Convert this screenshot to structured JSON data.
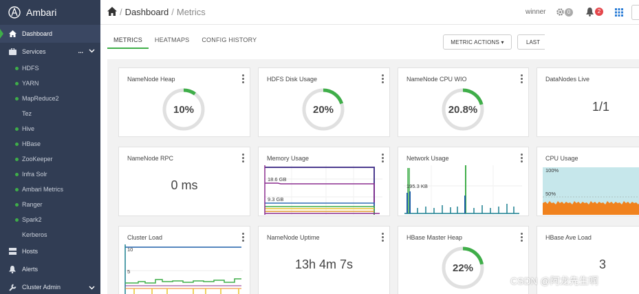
{
  "app": {
    "name": "Ambari"
  },
  "sidebar": {
    "dashboard": "Dashboard",
    "services": "Services",
    "services_more": "...",
    "service_items": [
      {
        "label": "HDFS",
        "dot": true
      },
      {
        "label": "YARN",
        "dot": true
      },
      {
        "label": "MapReduce2",
        "dot": true
      },
      {
        "label": "Tez",
        "dot": false
      },
      {
        "label": "Hive",
        "dot": true
      },
      {
        "label": "HBase",
        "dot": true
      },
      {
        "label": "ZooKeeper",
        "dot": true
      },
      {
        "label": "Infra Solr",
        "dot": true
      },
      {
        "label": "Ambari Metrics",
        "dot": true
      },
      {
        "label": "Ranger",
        "dot": true
      },
      {
        "label": "Spark2",
        "dot": true
      },
      {
        "label": "Kerberos",
        "dot": false
      }
    ],
    "hosts": "Hosts",
    "alerts": "Alerts",
    "cluster_admin": "Cluster Admin"
  },
  "header": {
    "crumb_root": "Dashboard",
    "crumb_current": "Metrics",
    "user": "winner",
    "ops_count": "0",
    "alerts_count": "2"
  },
  "tabs": {
    "metrics": "METRICS",
    "heatmaps": "HEATMAPS",
    "config_history": "CONFIG HISTORY",
    "metric_actions": "METRIC ACTIONS ▾",
    "last": "LAST"
  },
  "colors": {
    "accent": "#3fae49",
    "sidebar": "#313d54",
    "alert": "#e4464b"
  },
  "widgets": {
    "namenode_heap": {
      "title": "NameNode Heap",
      "value": "10%",
      "fraction": 0.1
    },
    "hdfs_disk": {
      "title": "HDFS Disk Usage",
      "value": "20%",
      "fraction": 0.2
    },
    "namenode_cpu": {
      "title": "NameNode CPU WIO",
      "value": "20.8%",
      "fraction": 0.208
    },
    "datanodes_live": {
      "title": "DataNodes Live",
      "value": "1/1"
    },
    "namenode_rpc": {
      "title": "NameNode RPC",
      "value": "0 ms"
    },
    "memory_usage": {
      "title": "Memory Usage",
      "label_top": "18.6 GB",
      "label_bottom": "9.3 GB"
    },
    "network_usage": {
      "title": "Network Usage",
      "label": "195.3 KB"
    },
    "cpu_usage": {
      "title": "CPU Usage",
      "label_top": "100%",
      "label_mid": "50%"
    },
    "cluster_load": {
      "title": "Cluster Load",
      "label_top": "10",
      "label_mid": "5"
    },
    "namenode_uptime": {
      "title": "NameNode Uptime",
      "value": "13h 4m 7s"
    },
    "hbase_master_heap": {
      "title": "HBase Master Heap",
      "value": "22%",
      "fraction": 0.22
    },
    "hbase_ave_load": {
      "title": "HBase Ave Load",
      "value": "3"
    }
  },
  "watermark": "CSDN @阿龙先生啊"
}
